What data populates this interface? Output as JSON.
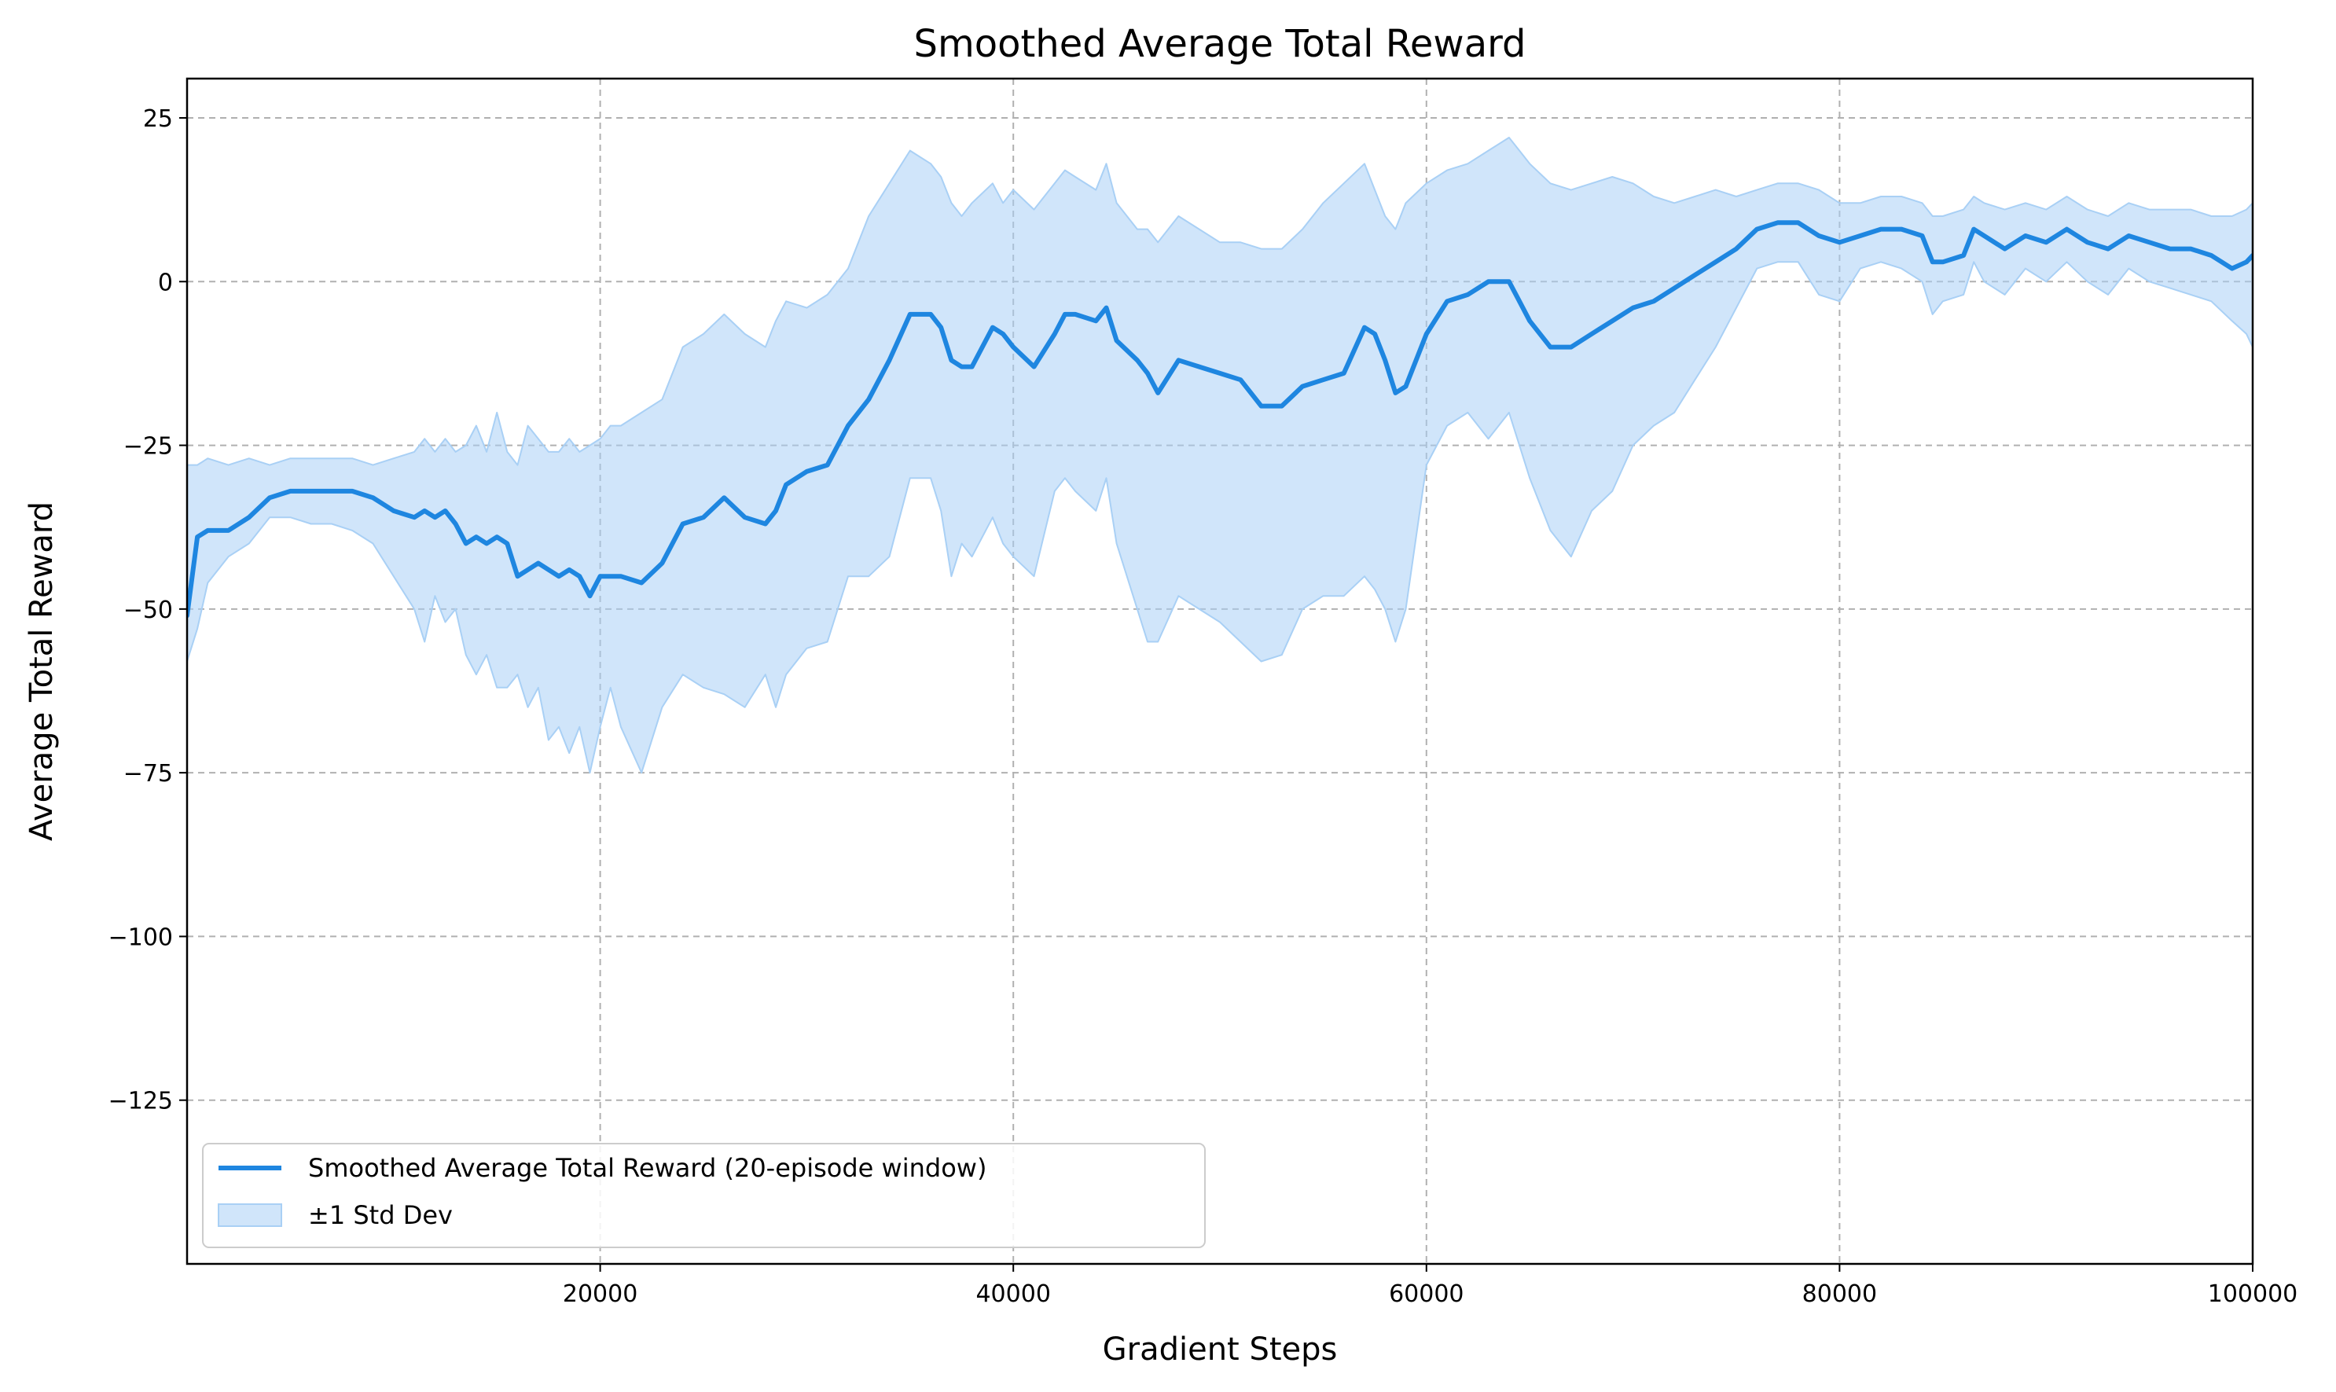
{
  "chart_data": {
    "type": "line",
    "title": "Smoothed Average Total Reward",
    "xlabel": "Gradient Steps",
    "ylabel": "Average Total Reward",
    "xlim": [
      0,
      100000
    ],
    "ylim": [
      -150,
      31
    ],
    "xticks": [
      20000,
      40000,
      60000,
      80000,
      100000
    ],
    "xtick_labels": [
      "20000",
      "40000",
      "60000",
      "80000",
      "100000"
    ],
    "yticks": [
      25,
      0,
      -25,
      -50,
      -75,
      -100,
      -125
    ],
    "ytick_labels": [
      "25",
      "0",
      "−25",
      "−50",
      "−75",
      "−100",
      "−125"
    ],
    "grid": true,
    "legend_position": "lower-left",
    "colors": {
      "line": "#1e86e0",
      "band": "#a9d0f5"
    },
    "series": [
      {
        "name": "Smoothed Average Total Reward (20-episode window)",
        "x": [
          0,
          500,
          1000,
          2000,
          3000,
          4000,
          5000,
          6000,
          7000,
          8000,
          9000,
          10000,
          11000,
          11500,
          12000,
          12500,
          13000,
          13500,
          14000,
          14500,
          15000,
          15500,
          16000,
          16500,
          17000,
          17500,
          18000,
          18500,
          19000,
          19500,
          20000,
          20500,
          21000,
          22000,
          23000,
          24000,
          25000,
          26000,
          27000,
          28000,
          28500,
          29000,
          30000,
          31000,
          32000,
          33000,
          34000,
          35000,
          36000,
          36500,
          37000,
          37500,
          38000,
          39000,
          39500,
          40000,
          41000,
          42000,
          42500,
          43000,
          44000,
          44500,
          45000,
          46000,
          46500,
          47000,
          48000,
          49000,
          50000,
          51000,
          52000,
          53000,
          54000,
          55000,
          56000,
          57000,
          57500,
          58000,
          58500,
          59000,
          60000,
          61000,
          62000,
          63000,
          64000,
          64500,
          65000,
          66000,
          67000,
          68000,
          69000,
          70000,
          71000,
          72000,
          73000,
          74000,
          75000,
          76000,
          77000,
          78000,
          79000,
          80000,
          81000,
          82000,
          83000,
          84000,
          84500,
          85000,
          86000,
          86500,
          87000,
          88000,
          89000,
          90000,
          91000,
          92000,
          93000,
          94000,
          95000,
          96000,
          97000,
          98000,
          99000,
          99700,
          100000
        ],
        "values": [
          -51,
          -39,
          -38,
          -38,
          -36,
          -33,
          -32,
          -32,
          -32,
          -32,
          -33,
          -35,
          -36,
          -35,
          -36,
          -35,
          -37,
          -40,
          -39,
          -40,
          -39,
          -40,
          -45,
          -44,
          -43,
          -44,
          -45,
          -44,
          -45,
          -48,
          -45,
          -45,
          -45,
          -46,
          -43,
          -37,
          -36,
          -33,
          -36,
          -37,
          -35,
          -31,
          -29,
          -28,
          -22,
          -18,
          -12,
          -5,
          -5,
          -7,
          -12,
          -13,
          -13,
          -7,
          -8,
          -10,
          -13,
          -8,
          -5,
          -5,
          -6,
          -4,
          -9,
          -12,
          -14,
          -17,
          -12,
          -13,
          -14,
          -15,
          -19,
          -19,
          -16,
          -15,
          -14,
          -7,
          -8,
          -12,
          -17,
          -16,
          -8,
          -3,
          -2,
          0,
          0,
          -3,
          -6,
          -10,
          -10,
          -8,
          -6,
          -4,
          -3,
          -1,
          1,
          3,
          5,
          8,
          9,
          9,
          7,
          6,
          7,
          8,
          8,
          7,
          3,
          3,
          4,
          8,
          7,
          5,
          7,
          6,
          8,
          6,
          5,
          7,
          6,
          5,
          5,
          4,
          2,
          3,
          4
        ]
      },
      {
        "name": "±1 Std Dev",
        "x": [
          0,
          500,
          1000,
          2000,
          3000,
          4000,
          5000,
          6000,
          7000,
          8000,
          9000,
          10000,
          11000,
          11500,
          12000,
          12500,
          13000,
          13500,
          14000,
          14500,
          15000,
          15500,
          16000,
          16500,
          17000,
          17500,
          18000,
          18500,
          19000,
          19500,
          20000,
          20500,
          21000,
          22000,
          23000,
          24000,
          25000,
          26000,
          27000,
          28000,
          28500,
          29000,
          30000,
          31000,
          32000,
          33000,
          34000,
          35000,
          36000,
          36500,
          37000,
          37500,
          38000,
          39000,
          39500,
          40000,
          41000,
          42000,
          42500,
          43000,
          44000,
          44500,
          45000,
          46000,
          46500,
          47000,
          48000,
          49000,
          50000,
          51000,
          52000,
          53000,
          54000,
          55000,
          56000,
          57000,
          57500,
          58000,
          58500,
          59000,
          60000,
          61000,
          62000,
          63000,
          64000,
          64500,
          65000,
          66000,
          67000,
          68000,
          69000,
          70000,
          71000,
          72000,
          73000,
          74000,
          75000,
          76000,
          77000,
          78000,
          79000,
          80000,
          81000,
          82000,
          83000,
          84000,
          84500,
          85000,
          86000,
          86500,
          87000,
          88000,
          89000,
          90000,
          91000,
          92000,
          93000,
          94000,
          95000,
          96000,
          97000,
          98000,
          99000,
          99700,
          100000
        ],
        "lower": [
          -58,
          -53,
          -46,
          -42,
          -40,
          -36,
          -36,
          -37,
          -37,
          -38,
          -40,
          -45,
          -50,
          -55,
          -48,
          -52,
          -50,
          -57,
          -60,
          -57,
          -62,
          -62,
          -60,
          -65,
          -62,
          -70,
          -68,
          -72,
          -68,
          -75,
          -68,
          -62,
          -68,
          -75,
          -65,
          -60,
          -62,
          -63,
          -65,
          -60,
          -65,
          -60,
          -56,
          -55,
          -45,
          -45,
          -42,
          -30,
          -30,
          -35,
          -45,
          -40,
          -42,
          -36,
          -40,
          -42,
          -45,
          -32,
          -30,
          -32,
          -35,
          -30,
          -40,
          -50,
          -55,
          -55,
          -48,
          -50,
          -52,
          -55,
          -58,
          -57,
          -50,
          -48,
          -48,
          -45,
          -47,
          -50,
          -55,
          -50,
          -28,
          -22,
          -20,
          -24,
          -20,
          -25,
          -30,
          -38,
          -42,
          -35,
          -32,
          -25,
          -22,
          -20,
          -15,
          -10,
          -4,
          2,
          3,
          3,
          -2,
          -3,
          2,
          3,
          2,
          0,
          -5,
          -3,
          -2,
          3,
          0,
          -2,
          2,
          0,
          3,
          0,
          -2,
          2,
          0,
          -1,
          -2,
          -3,
          -6,
          -8,
          -10
        ],
        "upper": [
          -28,
          -28,
          -27,
          -28,
          -27,
          -28,
          -27,
          -27,
          -27,
          -27,
          -28,
          -27,
          -26,
          -24,
          -26,
          -24,
          -26,
          -25,
          -22,
          -26,
          -20,
          -26,
          -28,
          -22,
          -24,
          -26,
          -26,
          -24,
          -26,
          -25,
          -24,
          -22,
          -22,
          -20,
          -18,
          -10,
          -8,
          -5,
          -8,
          -10,
          -6,
          -3,
          -4,
          -2,
          2,
          10,
          15,
          20,
          18,
          16,
          12,
          10,
          12,
          15,
          12,
          14,
          11,
          15,
          17,
          16,
          14,
          18,
          12,
          8,
          8,
          6,
          10,
          8,
          6,
          6,
          5,
          5,
          8,
          12,
          15,
          18,
          14,
          10,
          8,
          12,
          15,
          17,
          18,
          20,
          22,
          20,
          18,
          15,
          14,
          15,
          16,
          15,
          13,
          12,
          13,
          14,
          13,
          14,
          15,
          15,
          14,
          12,
          12,
          13,
          13,
          12,
          10,
          10,
          11,
          13,
          12,
          11,
          12,
          11,
          13,
          11,
          10,
          12,
          11,
          11,
          11,
          10,
          10,
          11,
          12
        ]
      }
    ]
  },
  "legend": {
    "items": [
      {
        "label": "Smoothed Average Total Reward (20-episode window)"
      },
      {
        "label": "±1 Std Dev"
      }
    ]
  }
}
